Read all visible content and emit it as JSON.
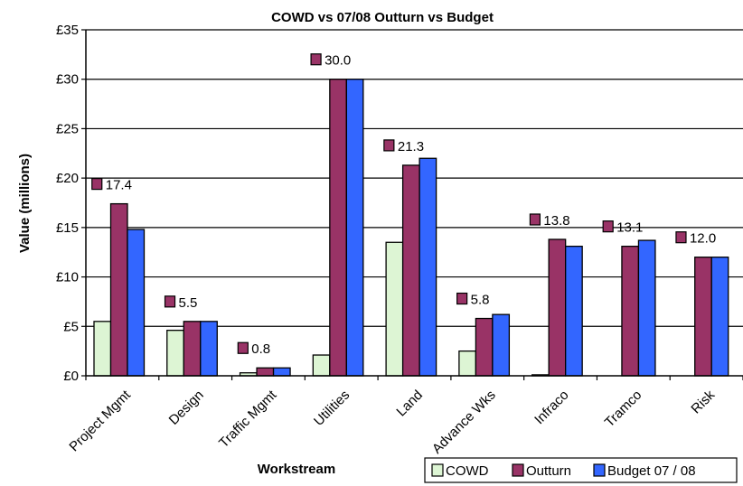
{
  "chart_data": {
    "type": "bar",
    "title": "COWD vs 07/08 Outturn vs Budget",
    "xlabel": "Workstream",
    "ylabel": "Value (millions)",
    "ylim": [
      0,
      35
    ],
    "yticks": [
      0,
      5,
      10,
      15,
      20,
      25,
      30,
      35
    ],
    "ytick_labels": [
      "£0",
      "£5",
      "£10",
      "£15",
      "£20",
      "£25",
      "£30",
      "£35"
    ],
    "grid": true,
    "legend_position": "bottom-right",
    "categories": [
      "Project Mgmt",
      "Design",
      "Traffic Mgmt",
      "Utilities",
      "Land",
      "Advance Wks",
      "Infraco",
      "Tramco",
      "Risk"
    ],
    "series": [
      {
        "name": "COWD",
        "color": "#ddf5d4",
        "values": [
          5.5,
          4.6,
          0.3,
          2.1,
          13.5,
          2.5,
          0.1,
          0,
          0
        ]
      },
      {
        "name": "Outturn",
        "color": "#993366",
        "values": [
          17.4,
          5.5,
          0.8,
          30.0,
          21.3,
          5.8,
          13.8,
          13.1,
          12.0
        ]
      },
      {
        "name": "Budget 07 / 08",
        "color": "#3366ff",
        "values": [
          14.8,
          5.5,
          0.8,
          30.0,
          22.0,
          6.2,
          13.1,
          13.7,
          12.0
        ]
      }
    ],
    "data_labels": [
      {
        "category": "Project Mgmt",
        "text": "17.4"
      },
      {
        "category": "Design",
        "text": "5.5"
      },
      {
        "category": "Traffic Mgmt",
        "text": "0.8"
      },
      {
        "category": "Utilities",
        "text": "30.0"
      },
      {
        "category": "Land",
        "text": "21.3"
      },
      {
        "category": "Advance Wks",
        "text": "5.8"
      },
      {
        "category": "Infraco",
        "text": "13.8"
      },
      {
        "category": "Tramco",
        "text": "13.1"
      },
      {
        "category": "Risk",
        "text": "12.0"
      }
    ]
  }
}
